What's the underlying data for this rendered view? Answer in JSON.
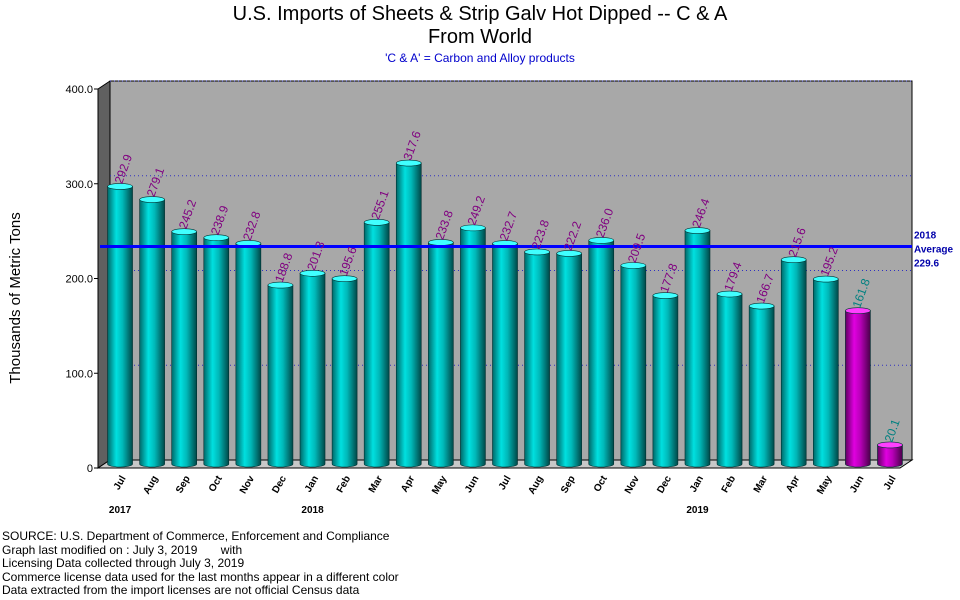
{
  "chart_data": {
    "type": "bar",
    "title": "U.S. Imports of Sheets & Strip Galv Hot Dipped -- C & A",
    "title_line2": "From World",
    "subtitle": "'C & A' = Carbon and Alloy products",
    "ylabel": "Thousands of Metric Tons",
    "xlabel": "",
    "ylim": [
      0,
      400
    ],
    "yticks": [
      "0",
      "100.0",
      "200.0",
      "300.0",
      "400.0"
    ],
    "grid": true,
    "categories": [
      "Jul",
      "Aug",
      "Sep",
      "Oct",
      "Nov",
      "Dec",
      "Jan",
      "Feb",
      "Mar",
      "Apr",
      "May",
      "Jun",
      "Jul",
      "Aug",
      "Sep",
      "Oct",
      "Nov",
      "Dec",
      "Jan",
      "Feb",
      "Mar",
      "Apr",
      "May",
      "Jun",
      "Jul"
    ],
    "year_labels": [
      {
        "index": 0,
        "label": "2017"
      },
      {
        "index": 6,
        "label": "2018"
      },
      {
        "index": 18,
        "label": "2019"
      }
    ],
    "values": [
      292.9,
      279.1,
      245.2,
      238.9,
      232.8,
      188.8,
      201.3,
      195.6,
      255.1,
      317.6,
      233.8,
      249.2,
      232.7,
      223.8,
      222.2,
      236.0,
      209.5,
      177.8,
      246.4,
      179.4,
      166.7,
      215.6,
      195.2,
      161.8,
      20.1
    ],
    "value_labels": [
      "292.9",
      "279.1",
      "245.2",
      "238.9",
      "232.8",
      "188.8",
      "201.3",
      "195.6",
      "255.1",
      "317.6",
      "233.8",
      "249.2",
      "232.7",
      "223.8",
      "222.2",
      "236.0",
      "209.5",
      "177.8",
      "246.4",
      "179.4",
      "166.7",
      "215.6",
      "195.2",
      "161.8",
      "20.1"
    ],
    "license_data_from_index": 23,
    "average": {
      "value": 229.6,
      "label_lines": [
        "2018",
        "Average",
        "229.6"
      ]
    },
    "colors": {
      "census_bar": "#00c8c8",
      "license_bar": "#cc00cc",
      "plot_background": "#a8a8a8",
      "average_line": "#0000ff",
      "census_label": "#800080",
      "license_label": "#008080",
      "grid": "#3030c0"
    }
  },
  "source_lines": [
    "SOURCE: U.S. Department of Commerce, Enforcement and Compliance",
    "Graph last modified on : July 3, 2019       with",
    "Licensing Data collected through July 3, 2019",
    "Commerce license data used for the last months appear in a different color",
    "Data extracted from the import licenses are not official Census data"
  ]
}
